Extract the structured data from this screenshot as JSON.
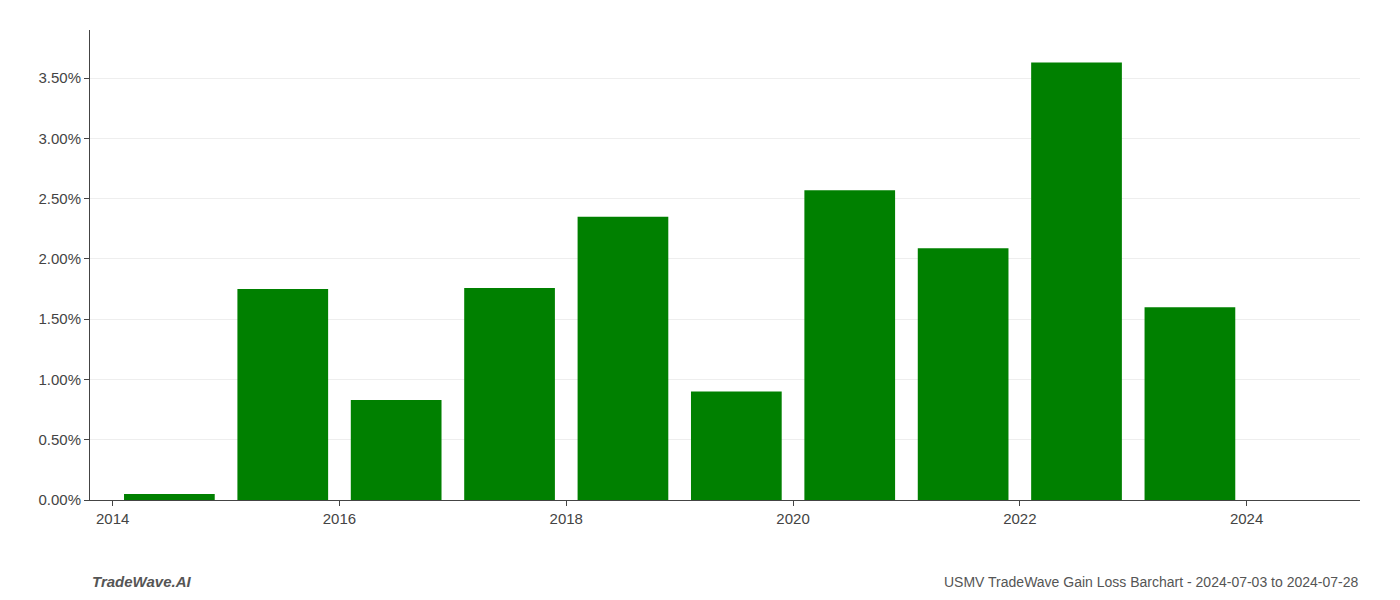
{
  "chart_data": {
    "type": "bar",
    "title": "USMV TradeWave Gain Loss Barchart - 2024-07-03 to 2024-07-28",
    "annotations": [
      "TradeWave.AI"
    ],
    "x": [
      2014.5,
      2015.5,
      2016.5,
      2017.5,
      2018.5,
      2019.5,
      2020.5,
      2021.5,
      2022.5,
      2023.5
    ],
    "values": [
      0.05,
      1.75,
      0.83,
      1.76,
      2.35,
      0.9,
      2.57,
      2.09,
      3.63,
      1.6
    ],
    "color": "#008000",
    "xlim": [
      2013.8,
      2025.0
    ],
    "xticks": [
      2014,
      2016,
      2018,
      2020,
      2022,
      2024
    ],
    "ylim": [
      0,
      3.9
    ],
    "yticks": [
      {
        "value": 0.0,
        "label": "0.00%"
      },
      {
        "value": 0.5,
        "label": "0.50%"
      },
      {
        "value": 1.0,
        "label": "1.00%"
      },
      {
        "value": 1.5,
        "label": "1.50%"
      },
      {
        "value": 2.0,
        "label": "2.00%"
      },
      {
        "value": 2.5,
        "label": "2.50%"
      },
      {
        "value": 3.0,
        "label": "3.00%"
      },
      {
        "value": 3.5,
        "label": "3.50%"
      }
    ],
    "grid": true
  }
}
